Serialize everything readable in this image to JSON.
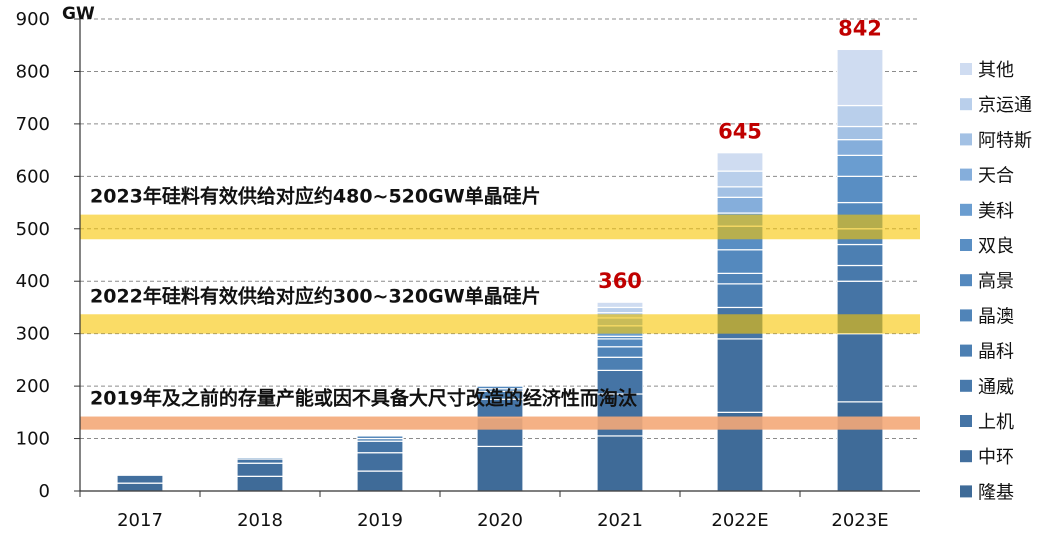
{
  "chart_data": {
    "type": "bar",
    "stacked": true,
    "unit_label": "GW",
    "categories": [
      "2017",
      "2018",
      "2019",
      "2020",
      "2021",
      "2022E",
      "2023E"
    ],
    "totals": [
      null,
      null,
      null,
      null,
      360,
      645,
      842
    ],
    "ylim": [
      0,
      900
    ],
    "yticks": [
      0,
      100,
      200,
      300,
      400,
      500,
      600,
      700,
      800,
      900
    ],
    "grid": true,
    "legend_position": "right",
    "series": [
      {
        "name": "隆基",
        "color": "#3f6b98",
        "values": [
          15,
          28,
          38,
          85,
          105,
          150,
          170
        ]
      },
      {
        "name": "中环",
        "color": "#426f9e",
        "values": [
          15,
          25,
          35,
          55,
          80,
          140,
          130
        ]
      },
      {
        "name": "上机",
        "color": "#4574a5",
        "values": [
          0,
          8,
          22,
          35,
          45,
          60,
          100
        ]
      },
      {
        "name": "通威",
        "color": "#4879ab",
        "values": [
          0,
          0,
          0,
          0,
          0,
          0,
          30
        ]
      },
      {
        "name": "晶科",
        "color": "#4c7fb2",
        "values": [
          0,
          0,
          5,
          15,
          25,
          45,
          40
        ]
      },
      {
        "name": "晶澳",
        "color": "#5084b8",
        "values": [
          0,
          0,
          5,
          5,
          20,
          20,
          30
        ]
      },
      {
        "name": "高景",
        "color": "#5489be",
        "values": [
          0,
          3,
          0,
          5,
          15,
          45,
          50
        ]
      },
      {
        "name": "双良",
        "color": "#598ec3",
        "values": [
          0,
          0,
          0,
          0,
          5,
          45,
          50
        ]
      },
      {
        "name": "美科",
        "color": "#6a9dd0",
        "values": [
          0,
          0,
          0,
          0,
          20,
          25,
          40
        ]
      },
      {
        "name": "天合",
        "color": "#85aedb",
        "values": [
          0,
          0,
          0,
          0,
          15,
          30,
          30
        ]
      },
      {
        "name": "阿特斯",
        "color": "#a3c1e4",
        "values": [
          0,
          0,
          0,
          0,
          10,
          20,
          25
        ]
      },
      {
        "name": "京运通",
        "color": "#b9cfeb",
        "values": [
          0,
          0,
          0,
          0,
          10,
          30,
          40
        ]
      },
      {
        "name": "其他",
        "color": "#cfdcf1",
        "values": [
          0,
          0,
          0,
          0,
          10,
          35,
          107
        ]
      }
    ],
    "bands": [
      {
        "label": "2023年硅料有效供给对应约480~520GW单晶硅片",
        "y_from": 480,
        "y_to": 527,
        "color": "#f6c500",
        "opacity": 0.6
      },
      {
        "label": "2022年硅料有效供给对应约300~320GW单晶硅片",
        "y_from": 300,
        "y_to": 337,
        "color": "#f6c500",
        "opacity": 0.6
      },
      {
        "label": "2019年及之前的存量产能或因不具备大尺寸改造的经济性而淘汰",
        "y_from": 117,
        "y_to": 142,
        "color": "#f4a878",
        "opacity": 0.9
      }
    ]
  }
}
